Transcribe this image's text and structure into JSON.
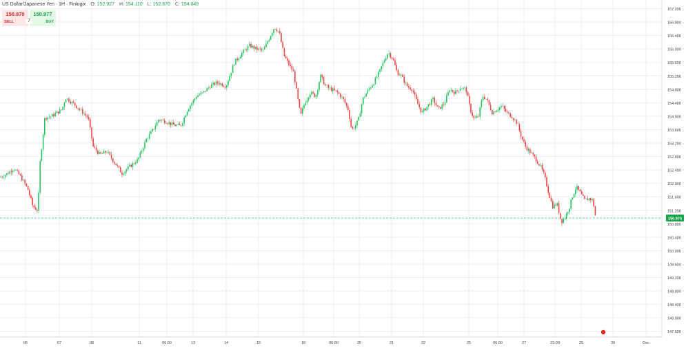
{
  "header": {
    "title": "US Dollar/Japanese Yen · 1H · Finlogix",
    "open_label": "O:",
    "open_value": "152.927",
    "high_label": "H:",
    "high_value": "154.110",
    "low_label": "L:",
    "low_value": "152.870",
    "close_label": "C:",
    "close_value": "154.049"
  },
  "trade": {
    "sell_price": "150.970",
    "buy_price": "150.977",
    "sell_label": "SELL",
    "buy_label": "BUY",
    "quantity": "7"
  },
  "colors": {
    "up": "#22c55e",
    "down": "#ef4444",
    "grid": "#eeeeee",
    "price_line": "#22c55e",
    "marker": "#dc2626"
  },
  "chart_data": {
    "type": "candlestick",
    "y_ticks": [
      "157.200",
      "156.800",
      "156.400",
      "156.000",
      "155.600",
      "155.200",
      "154.800",
      "154.400",
      "154.000",
      "153.600",
      "153.200",
      "152.800",
      "152.400",
      "152.000",
      "151.600",
      "151.200",
      "150.800",
      "150.400",
      "150.000",
      "149.600",
      "149.200",
      "148.800",
      "148.400",
      "148.000",
      "147.600"
    ],
    "ylim": [
      147.5,
      157.3
    ],
    "x_ticks": [
      "06",
      "07",
      "08",
      "11",
      "06:00",
      "13",
      "14",
      "15",
      "18",
      "06:00",
      "20",
      "21",
      "22",
      "25",
      "06:00",
      "27",
      "23:00",
      "29",
      "30",
      "Dec"
    ],
    "current_price": 150.97,
    "current_price_label": "150.970",
    "waypoints": [
      [
        0,
        152.18
      ],
      [
        10,
        152.28
      ],
      [
        20,
        152.45
      ],
      [
        30,
        152.2
      ],
      [
        40,
        151.85
      ],
      [
        48,
        151.3
      ],
      [
        55,
        151.2
      ],
      [
        58,
        152.6
      ],
      [
        65,
        153.95
      ],
      [
        75,
        154.0
      ],
      [
        90,
        154.2
      ],
      [
        95,
        154.55
      ],
      [
        108,
        154.35
      ],
      [
        118,
        154.15
      ],
      [
        128,
        153.95
      ],
      [
        135,
        153.1
      ],
      [
        145,
        152.85
      ],
      [
        155,
        152.95
      ],
      [
        165,
        152.65
      ],
      [
        177,
        152.3
      ],
      [
        188,
        152.5
      ],
      [
        200,
        152.7
      ],
      [
        212,
        153.3
      ],
      [
        222,
        153.6
      ],
      [
        230,
        153.9
      ],
      [
        240,
        153.85
      ],
      [
        250,
        153.75
      ],
      [
        262,
        153.7
      ],
      [
        272,
        154.2
      ],
      [
        285,
        154.6
      ],
      [
        295,
        154.7
      ],
      [
        305,
        154.9
      ],
      [
        315,
        155.0
      ],
      [
        328,
        154.9
      ],
      [
        340,
        155.6
      ],
      [
        352,
        155.9
      ],
      [
        362,
        156.1
      ],
      [
        372,
        156.0
      ],
      [
        382,
        155.95
      ],
      [
        390,
        156.3
      ],
      [
        398,
        156.65
      ],
      [
        405,
        156.5
      ],
      [
        412,
        155.8
      ],
      [
        420,
        155.5
      ],
      [
        426,
        155.3
      ],
      [
        432,
        154.5
      ],
      [
        436,
        154.0
      ],
      [
        442,
        154.4
      ],
      [
        450,
        154.7
      ],
      [
        458,
        154.6
      ],
      [
        465,
        155.2
      ],
      [
        472,
        154.9
      ],
      [
        480,
        154.8
      ],
      [
        490,
        154.7
      ],
      [
        498,
        154.5
      ],
      [
        505,
        154.2
      ],
      [
        510,
        153.6
      ],
      [
        515,
        153.7
      ],
      [
        520,
        153.9
      ],
      [
        526,
        154.5
      ],
      [
        535,
        154.8
      ],
      [
        542,
        155.0
      ],
      [
        550,
        155.3
      ],
      [
        556,
        155.6
      ],
      [
        563,
        155.9
      ],
      [
        570,
        155.7
      ],
      [
        576,
        155.3
      ],
      [
        582,
        155.2
      ],
      [
        590,
        154.9
      ],
      [
        598,
        154.8
      ],
      [
        605,
        154.4
      ],
      [
        612,
        154.1
      ],
      [
        620,
        154.3
      ],
      [
        628,
        154.5
      ],
      [
        636,
        154.2
      ],
      [
        645,
        154.4
      ],
      [
        652,
        154.8
      ],
      [
        660,
        154.7
      ],
      [
        668,
        154.85
      ],
      [
        676,
        154.8
      ],
      [
        682,
        154.2
      ],
      [
        688,
        153.9
      ],
      [
        694,
        154.0
      ],
      [
        700,
        154.6
      ],
      [
        706,
        154.5
      ],
      [
        714,
        154.1
      ],
      [
        720,
        154.2
      ],
      [
        728,
        154.3
      ],
      [
        735,
        154.1
      ],
      [
        742,
        154.0
      ],
      [
        750,
        153.8
      ],
      [
        756,
        153.4
      ],
      [
        762,
        153.1
      ],
      [
        770,
        152.9
      ],
      [
        778,
        152.7
      ],
      [
        784,
        152.5
      ],
      [
        790,
        152.2
      ],
      [
        796,
        151.7
      ],
      [
        802,
        151.3
      ],
      [
        808,
        151.4
      ],
      [
        814,
        150.85
      ],
      [
        820,
        151.0
      ],
      [
        826,
        151.3
      ],
      [
        830,
        151.6
      ],
      [
        836,
        151.9
      ],
      [
        842,
        151.7
      ],
      [
        848,
        151.5
      ],
      [
        855,
        151.55
      ],
      [
        860,
        151.5
      ],
      [
        864,
        150.97
      ]
    ]
  }
}
